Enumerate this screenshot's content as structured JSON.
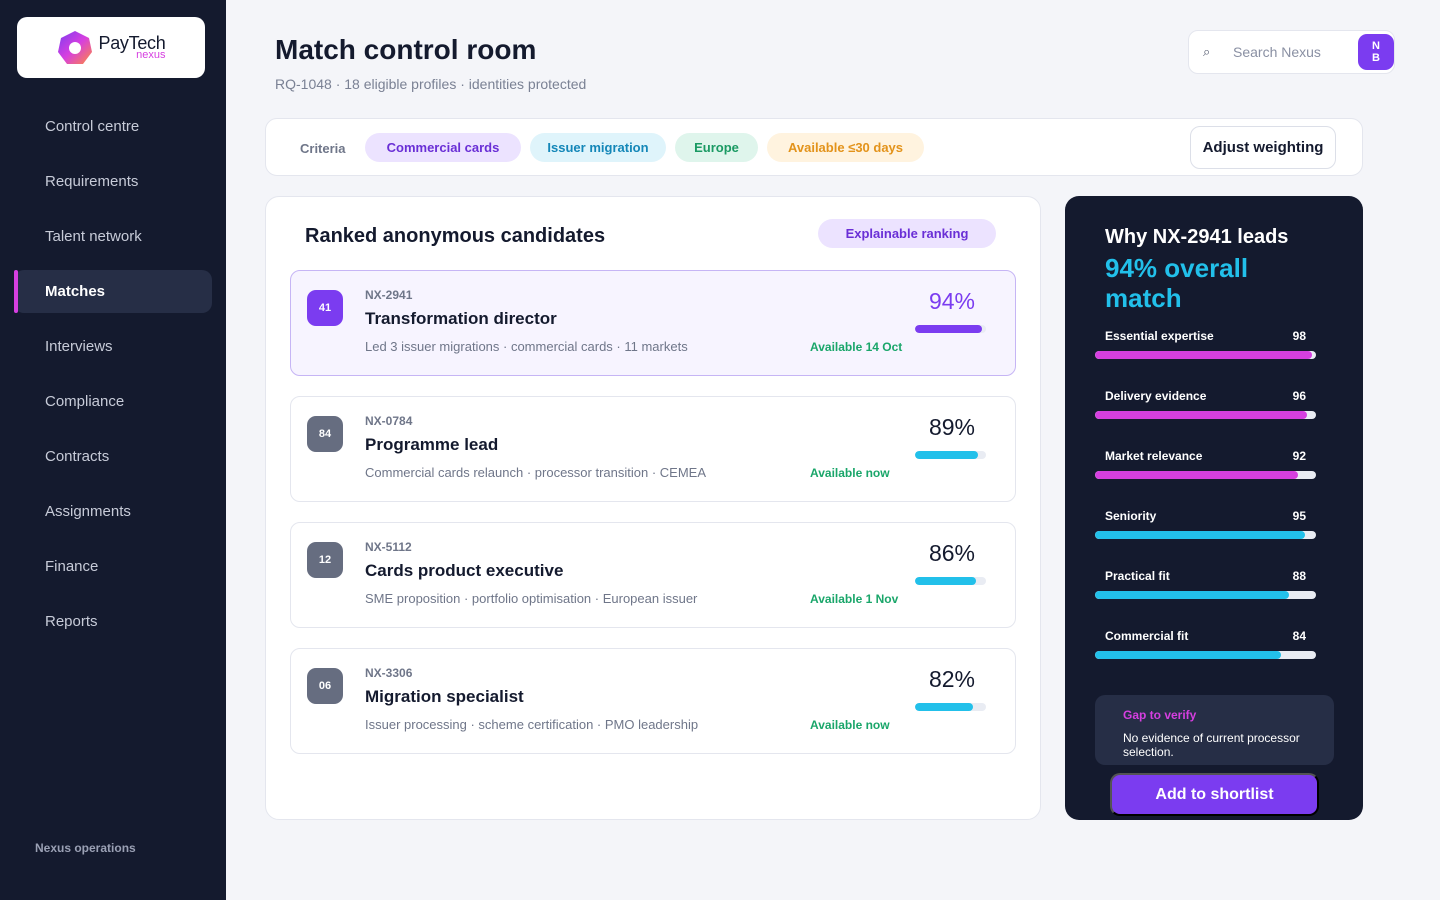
{
  "brand": {
    "name": "PayTech",
    "sub": "nexus"
  },
  "sidebar": {
    "items": [
      {
        "label": "Control centre",
        "active": false
      },
      {
        "label": "Requirements",
        "active": false
      },
      {
        "label": "Talent network",
        "active": false
      },
      {
        "label": "Matches",
        "active": true
      },
      {
        "label": "Interviews",
        "active": false
      },
      {
        "label": "Compliance",
        "active": false
      },
      {
        "label": "Contracts",
        "active": false
      },
      {
        "label": "Assignments",
        "active": false
      },
      {
        "label": "Finance",
        "active": false
      },
      {
        "label": "Reports",
        "active": false
      }
    ],
    "footer": "Nexus operations"
  },
  "header": {
    "title": "Match control room",
    "subtitle": "RQ-1048 · 18 eligible profiles · identities protected",
    "search_placeholder": "Search Nexus",
    "avatar_initials": "N B"
  },
  "criteria": {
    "label": "Criteria",
    "chips": [
      {
        "label": "Commercial cards",
        "bg": "#ece3ff",
        "color": "#6a2fd6"
      },
      {
        "label": "Issuer migration",
        "bg": "#dff4fb",
        "color": "#1487b8"
      },
      {
        "label": "Europe",
        "bg": "#dff5ec",
        "color": "#1a9a63"
      },
      {
        "label": "Available ≤30 days",
        "bg": "#fff3df",
        "color": "#e3931b"
      }
    ],
    "adjust_label": "Adjust weighting"
  },
  "candidates": {
    "title": "Ranked anonymous candidates",
    "badge": "Explainable ranking",
    "items": [
      {
        "rank": "41",
        "id": "NX-2941",
        "role": "Transformation director",
        "desc": "Led 3 issuer migrations · commercial cards · 11 markets",
        "availability": "Available 14 Oct",
        "score": "94%",
        "score_value": 94,
        "selected": true
      },
      {
        "rank": "84",
        "id": "NX-0784",
        "role": "Programme lead",
        "desc": "Commercial cards relaunch · processor transition · CEMEA",
        "availability": "Available now",
        "score": "89%",
        "score_value": 89,
        "selected": false
      },
      {
        "rank": "12",
        "id": "NX-5112",
        "role": "Cards product executive",
        "desc": "SME proposition · portfolio optimisation · European issuer",
        "availability": "Available 1 Nov",
        "score": "86%",
        "score_value": 86,
        "selected": false
      },
      {
        "rank": "06",
        "id": "NX-3306",
        "role": "Migration specialist",
        "desc": "Issuer processing · scheme certification · PMO leadership",
        "availability": "Available now",
        "score": "82%",
        "score_value": 82,
        "selected": false
      }
    ]
  },
  "insight": {
    "title": "Why NX-2941 leads",
    "headline": "94% overall match",
    "metrics": [
      {
        "label": "Essential expertise",
        "value": 98,
        "color": "#d63fe0"
      },
      {
        "label": "Delivery evidence",
        "value": 96,
        "color": "#d63fe0"
      },
      {
        "label": "Market relevance",
        "value": 92,
        "color": "#d63fe0"
      },
      {
        "label": "Seniority",
        "value": 95,
        "color": "#22c0ea"
      },
      {
        "label": "Practical fit",
        "value": 88,
        "color": "#22c0ea"
      },
      {
        "label": "Commercial fit",
        "value": 84,
        "color": "#22c0ea"
      }
    ],
    "gap_title": "Gap to verify",
    "gap_text": "No evidence of current processor selection.",
    "shortlist_label": "Add to shortlist"
  }
}
